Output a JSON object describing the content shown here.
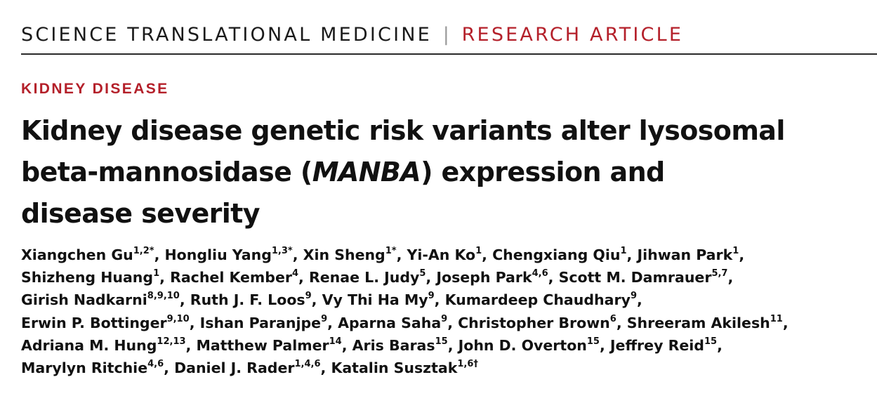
{
  "header": {
    "journal": "SCIENCE TRANSLATIONAL MEDICINE",
    "separator": "|",
    "article_type": "RESEARCH ARTICLE"
  },
  "section": "KIDNEY DISEASE",
  "title": {
    "line1": "Kidney disease genetic risk variants alter lysosomal",
    "line2_pre": "beta-mannosidase (",
    "line2_gene": "MANBA",
    "line2_post": ") expression and",
    "line3": "disease severity"
  },
  "author_lines": [
    [
      {
        "name": "Xiangchen Gu",
        "aff": "1,2*",
        "sep": ", "
      },
      {
        "name": "Hongliu Yang",
        "aff": "1,3*",
        "sep": ", "
      },
      {
        "name": "Xin Sheng",
        "aff": "1*",
        "sep": ", "
      },
      {
        "name": "Yi-An Ko",
        "aff": "1",
        "sep": ", "
      },
      {
        "name": "Chengxiang Qiu",
        "aff": "1",
        "sep": ", "
      },
      {
        "name": "Jihwan Park",
        "aff": "1",
        "sep": ","
      }
    ],
    [
      {
        "name": "Shizheng Huang",
        "aff": "1",
        "sep": ", "
      },
      {
        "name": "Rachel Kember",
        "aff": "4",
        "sep": ", "
      },
      {
        "name": "Renae L. Judy",
        "aff": "5",
        "sep": ", "
      },
      {
        "name": "Joseph Park",
        "aff": "4,6",
        "sep": ", "
      },
      {
        "name": "Scott M. Damrauer",
        "aff": "5,7",
        "sep": ","
      }
    ],
    [
      {
        "name": "Girish Nadkarni",
        "aff": "8,9,10",
        "sep": ", "
      },
      {
        "name": "Ruth J. F. Loos",
        "aff": "9",
        "sep": ", "
      },
      {
        "name": "Vy Thi Ha My",
        "aff": "9",
        "sep": ", "
      },
      {
        "name": "Kumardeep Chaudhary",
        "aff": "9",
        "sep": ","
      }
    ],
    [
      {
        "name": "Erwin P. Bottinger",
        "aff": "9,10",
        "sep": ", "
      },
      {
        "name": "Ishan Paranjpe",
        "aff": "9",
        "sep": ", "
      },
      {
        "name": "Aparna Saha",
        "aff": "9",
        "sep": ", "
      },
      {
        "name": "Christopher Brown",
        "aff": "6",
        "sep": ", "
      },
      {
        "name": "Shreeram Akilesh",
        "aff": "11",
        "sep": ","
      }
    ],
    [
      {
        "name": "Adriana M. Hung",
        "aff": "12,13",
        "sep": ", "
      },
      {
        "name": "Matthew Palmer",
        "aff": "14",
        "sep": ", "
      },
      {
        "name": "Aris Baras",
        "aff": "15",
        "sep": ", "
      },
      {
        "name": "John D. Overton",
        "aff": "15",
        "sep": ", "
      },
      {
        "name": "Jeffrey Reid",
        "aff": "15",
        "sep": ","
      }
    ],
    [
      {
        "name": "Marylyn Ritchie",
        "aff": "4,6",
        "sep": ", "
      },
      {
        "name": "Daniel J. Rader",
        "aff": "1,4,6",
        "sep": ", "
      },
      {
        "name": "Katalin Susztak",
        "aff": "1,6†",
        "sep": ""
      }
    ]
  ]
}
